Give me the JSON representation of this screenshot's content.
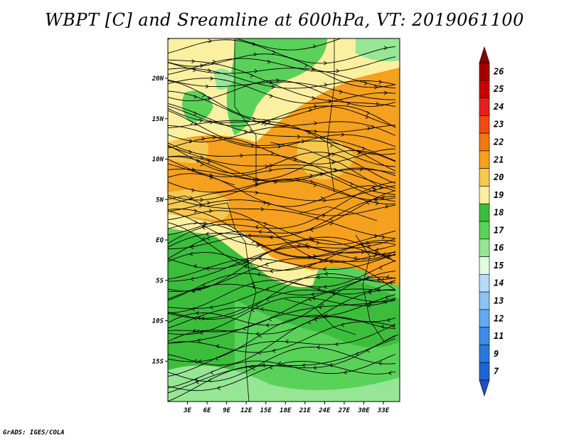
{
  "title": "WBPT [C] and Sreamline at 600hPa, VT: 2019061100",
  "credit": "GrADS: IGES/COLA",
  "lat_ticks": [
    {
      "label": "20N",
      "value": 20
    },
    {
      "label": "15N",
      "value": 15
    },
    {
      "label": "10N",
      "value": 10
    },
    {
      "label": "5N",
      "value": 5
    },
    {
      "label": "EQ",
      "value": 0
    },
    {
      "label": "5S",
      "value": -5
    },
    {
      "label": "10S",
      "value": -10
    },
    {
      "label": "15S",
      "value": -15
    }
  ],
  "lon_ticks": [
    {
      "label": "3E",
      "value": 3
    },
    {
      "label": "6E",
      "value": 6
    },
    {
      "label": "9E",
      "value": 9
    },
    {
      "label": "12E",
      "value": 12
    },
    {
      "label": "15E",
      "value": 15
    },
    {
      "label": "18E",
      "value": 18
    },
    {
      "label": "21E",
      "value": 21
    },
    {
      "label": "24E",
      "value": 24
    },
    {
      "label": "27E",
      "value": 27
    },
    {
      "label": "30E",
      "value": 30
    },
    {
      "label": "33E",
      "value": 33
    }
  ],
  "colorbar": [
    {
      "label": "26",
      "color": "#a50000"
    },
    {
      "label": "25",
      "color": "#c80000"
    },
    {
      "label": "24",
      "color": "#e61e1e"
    },
    {
      "label": "23",
      "color": "#f04b14"
    },
    {
      "label": "22",
      "color": "#f07814"
    },
    {
      "label": "21",
      "color": "#f5a01e"
    },
    {
      "label": "20",
      "color": "#f5c850"
    },
    {
      "label": "19",
      "color": "#faf0a0"
    },
    {
      "label": "18",
      "color": "#3cbe3c"
    },
    {
      "label": "17",
      "color": "#5ad25a"
    },
    {
      "label": "16",
      "color": "#96e696"
    },
    {
      "label": "15",
      "color": "#e1fae1"
    },
    {
      "label": "14",
      "color": "#b4dcfa"
    },
    {
      "label": "13",
      "color": "#8cc3f5"
    },
    {
      "label": "12",
      "color": "#64aaf0"
    },
    {
      "label": "11",
      "color": "#3c8ce6"
    },
    {
      "label": "9",
      "color": "#2878dc"
    },
    {
      "label": "7",
      "color": "#1e64d2"
    }
  ]
}
